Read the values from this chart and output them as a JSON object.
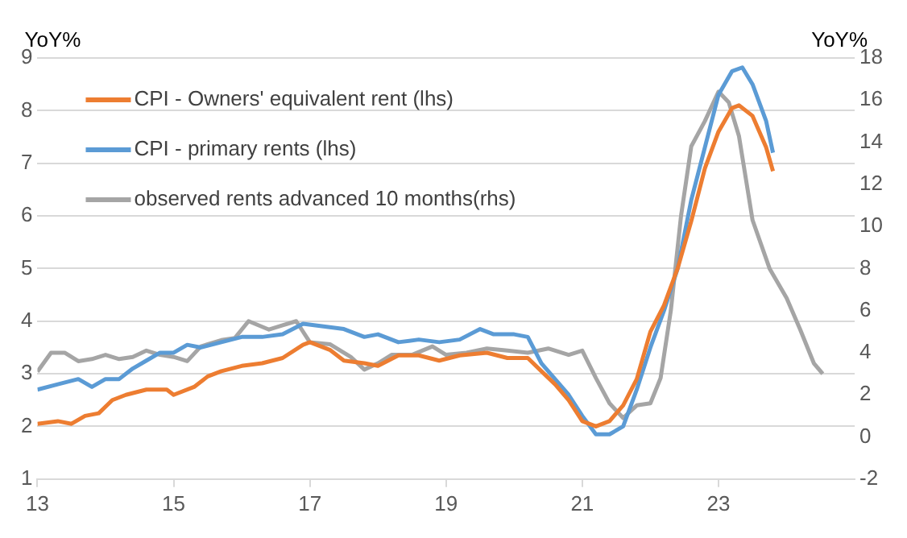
{
  "chart_data": {
    "type": "line",
    "ylabel": "YoY%",
    "y2label": "YoY%",
    "xlim": [
      13,
      25
    ],
    "xticks": [
      13,
      15,
      17,
      19,
      21,
      23
    ],
    "ylim": [
      1,
      9
    ],
    "yticks": [
      1,
      2,
      3,
      4,
      5,
      6,
      7,
      8,
      9
    ],
    "y2lim": [
      -2,
      18
    ],
    "y2ticks": [
      -2,
      0,
      2,
      4,
      6,
      8,
      10,
      12,
      14,
      16,
      18
    ],
    "grid": "y",
    "legend": "top left",
    "marker": "none",
    "series": [
      {
        "name": "CPI - Owners' equivalent rent (lhs)",
        "color": "#ed7d31",
        "x": [
          13.0,
          13.3,
          13.5,
          13.7,
          13.9,
          14.1,
          14.3,
          14.6,
          14.9,
          15.0,
          15.3,
          15.5,
          15.7,
          16.0,
          16.3,
          16.6,
          16.9,
          17.0,
          17.3,
          17.5,
          17.8,
          18.0,
          18.3,
          18.6,
          18.9,
          19.2,
          19.6,
          19.9,
          20.2,
          20.4,
          20.6,
          20.8,
          21.0,
          21.2,
          21.4,
          21.6,
          21.8,
          22.0,
          22.2,
          22.4,
          22.6,
          22.8,
          23.0,
          23.2,
          23.3,
          23.5,
          23.7,
          23.8
        ],
        "values": [
          2.05,
          2.1,
          2.05,
          2.2,
          2.25,
          2.5,
          2.6,
          2.7,
          2.7,
          2.6,
          2.75,
          2.95,
          3.05,
          3.15,
          3.2,
          3.3,
          3.55,
          3.6,
          3.45,
          3.25,
          3.2,
          3.15,
          3.35,
          3.35,
          3.25,
          3.35,
          3.4,
          3.3,
          3.3,
          3.05,
          2.8,
          2.5,
          2.1,
          2.0,
          2.1,
          2.4,
          2.9,
          3.8,
          4.3,
          5.0,
          5.9,
          6.9,
          7.6,
          8.05,
          8.1,
          7.9,
          7.3,
          6.85
        ]
      },
      {
        "name": "CPI - primary rents (lhs)",
        "color": "#5b9bd5",
        "x": [
          13.0,
          13.3,
          13.6,
          13.8,
          14.0,
          14.2,
          14.4,
          14.6,
          14.8,
          15.0,
          15.2,
          15.4,
          15.7,
          16.0,
          16.3,
          16.6,
          16.9,
          17.2,
          17.5,
          17.8,
          18.0,
          18.3,
          18.6,
          18.9,
          19.2,
          19.5,
          19.7,
          20.0,
          20.2,
          20.4,
          20.6,
          20.8,
          21.0,
          21.2,
          21.4,
          21.6,
          21.8,
          22.0,
          22.2,
          22.4,
          22.6,
          22.8,
          23.0,
          23.2,
          23.35,
          23.5,
          23.7,
          23.8
        ],
        "values": [
          2.7,
          2.8,
          2.9,
          2.75,
          2.9,
          2.9,
          3.1,
          3.25,
          3.4,
          3.4,
          3.55,
          3.5,
          3.6,
          3.7,
          3.7,
          3.75,
          3.95,
          3.9,
          3.85,
          3.7,
          3.75,
          3.6,
          3.65,
          3.6,
          3.65,
          3.85,
          3.75,
          3.75,
          3.7,
          3.2,
          2.9,
          2.6,
          2.2,
          1.85,
          1.85,
          2.0,
          2.7,
          3.5,
          4.2,
          5.0,
          6.3,
          7.3,
          8.3,
          8.75,
          8.82,
          8.5,
          7.8,
          7.2
        ]
      },
      {
        "name": "observed rents advanced 10 months(rhs)",
        "color": "#a5a5a5",
        "axis": "y2",
        "x": [
          13.0,
          13.2,
          13.4,
          13.6,
          13.8,
          14.0,
          14.2,
          14.4,
          14.6,
          14.8,
          15.0,
          15.2,
          15.4,
          15.7,
          15.9,
          16.1,
          16.4,
          16.6,
          16.8,
          17.0,
          17.3,
          17.6,
          17.8,
          18.0,
          18.2,
          18.5,
          18.8,
          19.0,
          19.3,
          19.6,
          19.9,
          20.2,
          20.5,
          20.8,
          21.0,
          21.2,
          21.4,
          21.6,
          21.8,
          22.0,
          22.15,
          22.3,
          22.45,
          22.6,
          22.8,
          23.0,
          23.15,
          23.3,
          23.5,
          23.75,
          24.0,
          24.2,
          24.4,
          24.53
        ],
        "values": [
          3.1,
          4.0,
          4.0,
          3.6,
          3.7,
          3.9,
          3.7,
          3.8,
          4.1,
          3.9,
          3.8,
          3.6,
          4.3,
          4.6,
          4.7,
          5.5,
          5.1,
          5.3,
          5.5,
          4.5,
          4.4,
          3.8,
          3.2,
          3.5,
          3.9,
          3.9,
          4.3,
          3.9,
          4.0,
          4.2,
          4.1,
          4.0,
          4.2,
          3.9,
          4.1,
          2.8,
          1.6,
          0.9,
          1.5,
          1.6,
          2.8,
          6.0,
          10.5,
          13.8,
          15.0,
          16.4,
          15.9,
          14.3,
          10.3,
          8.0,
          6.6,
          5.1,
          3.5,
          3.0
        ]
      }
    ]
  }
}
